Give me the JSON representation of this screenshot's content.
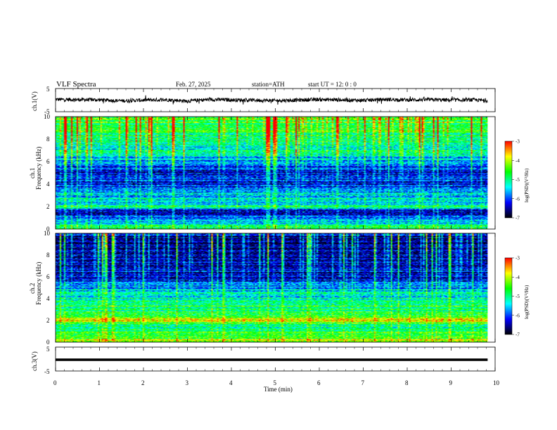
{
  "header": {
    "title": "VLF  Spectra",
    "date": "Feb. 27, 2025",
    "station": "station=ATH",
    "start": "start  UT  =    12: 0   : 0"
  },
  "chart_data": [
    {
      "type": "line",
      "id": "ch1-waveform",
      "ylabel": "ch.1(V)",
      "ylim": [
        -5,
        5
      ],
      "yticks": [
        "5",
        "-5"
      ],
      "xlim": [
        0,
        10
      ],
      "trace": {
        "baseline": 0.3,
        "x_end": 9.83,
        "t": [
          0,
          0.5,
          1,
          1.5,
          2,
          2.5,
          3,
          3.5,
          4,
          4.5,
          5,
          5.5,
          6,
          6.5,
          7,
          7.5,
          8,
          8.5,
          9,
          9.5,
          9.83
        ],
        "mean": [
          0.3,
          0.2,
          0.1,
          -0.3,
          0.0,
          0.2,
          -0.4,
          0.3,
          0.1,
          0.0,
          -0.2,
          0.0,
          0.3,
          0.1,
          -0.1,
          0.3,
          0.1,
          0.2,
          0.0,
          0.1,
          -0.2
        ]
      },
      "color": "#000000"
    },
    {
      "type": "heatmap",
      "id": "ch1-spectrogram",
      "ylabel": "Frequency (kHz)",
      "panel_label": "ch.1",
      "ylim": [
        0,
        10
      ],
      "yticks": [
        "0",
        "2",
        "4",
        "6",
        "8",
        "10"
      ],
      "xlim": [
        0,
        10
      ],
      "x_end": 9.83,
      "colorbar": {
        "label": "log(PSD)(V²/Hz)",
        "range": [
          -7,
          -3
        ],
        "ticks": [
          "-3",
          "-4",
          "-5",
          "-6",
          "-7"
        ]
      },
      "profile": {
        "freq_khz": [
          0,
          0.4,
          1.0,
          1.6,
          2.0,
          2.4,
          3.0,
          3.5,
          4.0,
          4.5,
          5.0,
          5.5,
          6.0,
          6.5,
          7.0,
          8.0,
          9.0,
          10.0
        ],
        "level": [
          -4.6,
          -5.2,
          -6.2,
          -6.4,
          -4.9,
          -5.6,
          -5.4,
          -5.8,
          -6.2,
          -6.3,
          -6.3,
          -6.0,
          -5.7,
          -5.5,
          -5.2,
          -5.0,
          -4.7,
          -4.6
        ]
      }
    },
    {
      "type": "heatmap",
      "id": "ch2-spectrogram",
      "ylabel": "Frequency (kHz)",
      "panel_label": "ch.2",
      "ylim": [
        0,
        10
      ],
      "yticks": [
        "0",
        "2",
        "4",
        "6",
        "8",
        "10"
      ],
      "xlim": [
        0,
        10
      ],
      "x_end": 9.83,
      "colorbar": {
        "label": "log(PSD)(V²/Hz)",
        "range": [
          -7,
          -3
        ],
        "ticks": [
          "-3",
          "-4",
          "-5",
          "-6",
          "-7"
        ]
      },
      "profile": {
        "freq_khz": [
          0,
          0.5,
          1.0,
          1.5,
          2.0,
          2.5,
          3.0,
          3.5,
          4.0,
          4.5,
          5.0,
          5.5,
          6.0,
          7.0,
          8.0,
          9.0,
          10.0
        ],
        "level": [
          -4.2,
          -4.4,
          -4.8,
          -5.0,
          -3.9,
          -4.7,
          -4.8,
          -5.0,
          -5.2,
          -5.4,
          -5.8,
          -6.0,
          -6.2,
          -6.5,
          -6.6,
          -6.5,
          -6.4
        ]
      }
    },
    {
      "type": "line",
      "id": "ch3-waveform",
      "ylabel": "ch.3(V)",
      "ylim": [
        -5,
        5
      ],
      "yticks": [
        "5",
        "-5"
      ],
      "xlim": [
        0,
        10
      ],
      "trace": {
        "baseline": 0.0,
        "x_end": 9.83
      },
      "color": "#000000"
    }
  ],
  "xaxis": {
    "label": "Time  (min)",
    "ticks": [
      "0",
      "1",
      "2",
      "3",
      "4",
      "5",
      "6",
      "7",
      "8",
      "9",
      "10"
    ],
    "range": [
      0,
      10
    ]
  },
  "colormap": [
    "#000000",
    "#000080",
    "#0000ff",
    "#0080ff",
    "#00ffff",
    "#00ff80",
    "#00ff00",
    "#80ff00",
    "#ffff00",
    "#ff8000",
    "#ff0000",
    "#ffffff"
  ]
}
